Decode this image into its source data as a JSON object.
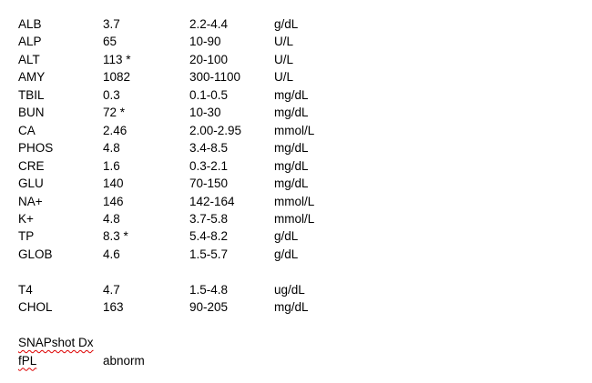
{
  "sections": [
    {
      "rows": [
        [
          "ALB",
          "3.7",
          "2.2-4.4",
          "g/dL"
        ],
        [
          "ALP",
          "65",
          "10-90",
          "U/L"
        ],
        [
          "ALT",
          "113 *",
          "20-100",
          "U/L"
        ],
        [
          "AMY",
          "1082",
          "300-1100",
          "U/L"
        ],
        [
          "TBIL",
          "0.3",
          "0.1-0.5",
          "mg/dL"
        ],
        [
          "BUN",
          "72 *",
          "10-30",
          "mg/dL"
        ],
        [
          "CA",
          "2.46",
          "2.00-2.95",
          "mmol/L"
        ],
        [
          "PHOS",
          "4.8",
          "3.4-8.5",
          "mg/dL"
        ],
        [
          "CRE",
          "1.6",
          "0.3-2.1",
          "mg/dL"
        ],
        [
          "GLU",
          "140",
          "70-150",
          "mg/dL"
        ],
        [
          "NA+",
          "146",
          "142-164",
          "mmol/L"
        ],
        [
          "K+",
          "4.8",
          "3.7-5.8",
          "mmol/L"
        ],
        [
          "TP",
          "8.3 *",
          "5.4-8.2",
          "g/dL"
        ],
        [
          "GLOB",
          "4.6",
          "1.5-5.7",
          "g/dL"
        ]
      ]
    },
    {
      "rows": [
        [
          "T4",
          "4.7",
          "1.5-4.8",
          "ug/dL"
        ],
        [
          "CHOL",
          "163",
          "90-205",
          "mg/dL"
        ]
      ]
    }
  ],
  "snapshot": {
    "title": "SNAPshot Dx",
    "rows": [
      [
        "fPL",
        "abnorm"
      ]
    ]
  }
}
